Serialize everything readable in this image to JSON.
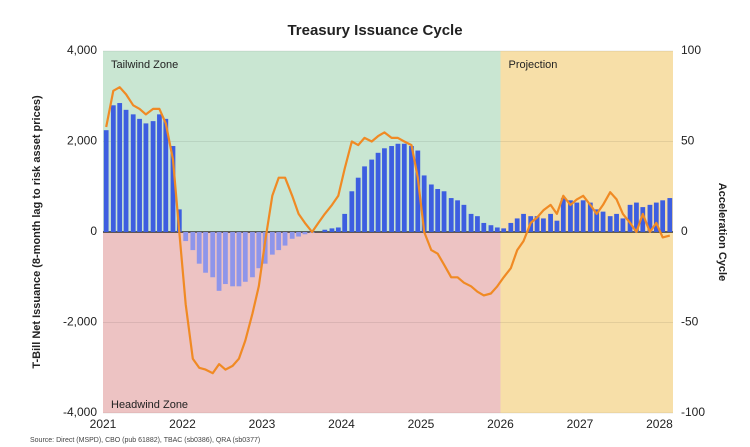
{
  "chart_data": {
    "type": "bar-line",
    "title": "Treasury Issuance Cycle",
    "y_label": "T-Bill Net Issuance (8-month lag to risk asset prices)",
    "y2_label": "Acceleration Cycle",
    "source": "Source: Direct (MSPD), CBO (pub 61882), TBAC (sb0386), QRA (sb0377)",
    "x": [
      2021.04,
      2021.13,
      2021.21,
      2021.29,
      2021.38,
      2021.46,
      2021.54,
      2021.63,
      2021.71,
      2021.79,
      2021.88,
      2021.96,
      2022.04,
      2022.13,
      2022.21,
      2022.29,
      2022.38,
      2022.46,
      2022.54,
      2022.63,
      2022.71,
      2022.79,
      2022.88,
      2022.96,
      2023.04,
      2023.13,
      2023.21,
      2023.29,
      2023.38,
      2023.46,
      2023.54,
      2023.63,
      2023.71,
      2023.79,
      2023.88,
      2023.96,
      2024.04,
      2024.13,
      2024.21,
      2024.29,
      2024.38,
      2024.46,
      2024.54,
      2024.63,
      2024.71,
      2024.79,
      2024.88,
      2024.96,
      2025.04,
      2025.13,
      2025.21,
      2025.29,
      2025.38,
      2025.46,
      2025.54,
      2025.63,
      2025.71,
      2025.79,
      2025.88,
      2025.96,
      2026.04,
      2026.13,
      2026.21,
      2026.29,
      2026.38,
      2026.46,
      2026.54,
      2026.63,
      2026.71,
      2026.79,
      2026.88,
      2026.96,
      2027.04,
      2027.13,
      2027.21,
      2027.29,
      2027.38,
      2027.46,
      2027.54,
      2027.63,
      2027.71,
      2027.79,
      2027.88,
      2027.96,
      2028.04,
      2028.13
    ],
    "xlim": [
      2021,
      2028.17
    ],
    "xticks": [
      2021,
      2022,
      2023,
      2024,
      2025,
      2026,
      2027,
      2028
    ],
    "ylim": [
      -4000,
      4000
    ],
    "yticks": [
      {
        "value": 4000,
        "label": "4,000"
      },
      {
        "value": 2000,
        "label": "2,000"
      },
      0,
      {
        "value": -2000,
        "label": "-2,000"
      },
      {
        "value": -4000,
        "label": "-4,000"
      }
    ],
    "y2lim": [
      -100,
      100
    ],
    "y2ticks": [
      100,
      50,
      0,
      -50,
      -100
    ],
    "grid": true,
    "zones": [
      {
        "label": "Tailwind Zone",
        "x": [
          2021,
          2026
        ],
        "y": [
          0,
          4000
        ],
        "color": "#c9e6d2"
      },
      {
        "label": "Headwind Zone",
        "x": [
          2021,
          2026
        ],
        "y": [
          -4000,
          0
        ],
        "color": "#edc3c3"
      },
      {
        "label": "Projection",
        "x": [
          2026,
          2028.17
        ],
        "y": [
          -4000,
          4000
        ],
        "color": "#f7dfa8"
      }
    ],
    "series": [
      {
        "kind": "bar",
        "color": "#3d5ee0",
        "negative_color": "#8e95ea",
        "values": [
          2250,
          2800,
          2850,
          2700,
          2600,
          2500,
          2400,
          2450,
          2600,
          2500,
          1900,
          500,
          -200,
          -400,
          -700,
          -900,
          -1000,
          -1300,
          -1150,
          -1200,
          -1200,
          -1100,
          -1000,
          -800,
          -700,
          -500,
          -400,
          -300,
          -150,
          -100,
          -50,
          -20,
          0,
          50,
          80,
          100,
          400,
          900,
          1200,
          1450,
          1600,
          1750,
          1850,
          1900,
          1950,
          1950,
          1900,
          1800,
          1250,
          1050,
          950,
          900,
          750,
          700,
          600,
          400,
          350,
          200,
          150,
          100,
          80,
          200,
          300,
          400,
          350,
          350,
          300,
          400,
          250,
          750,
          700,
          650,
          700,
          650,
          500,
          450,
          350,
          400,
          300,
          600,
          650,
          550,
          600,
          650,
          700,
          750
        ]
      },
      {
        "kind": "line",
        "axis": "y2",
        "color": "#f08a24",
        "values": [
          58,
          78,
          80,
          76,
          70,
          68,
          65,
          68,
          68,
          60,
          40,
          0,
          -40,
          -70,
          -75,
          -76,
          -78,
          -73,
          -76,
          -74,
          -70,
          -60,
          -45,
          -30,
          -5,
          20,
          30,
          30,
          20,
          10,
          5,
          0,
          5,
          10,
          15,
          20,
          35,
          50,
          48,
          52,
          50,
          53,
          55,
          52,
          52,
          50,
          48,
          30,
          0,
          -10,
          -12,
          -18,
          -25,
          -25,
          -28,
          -30,
          -33,
          -35,
          -34,
          -30,
          -25,
          -20,
          -10,
          -5,
          5,
          8,
          12,
          15,
          10,
          20,
          15,
          18,
          20,
          15,
          10,
          15,
          22,
          18,
          10,
          5,
          0,
          10,
          0,
          5,
          -3,
          -2
        ]
      }
    ]
  }
}
